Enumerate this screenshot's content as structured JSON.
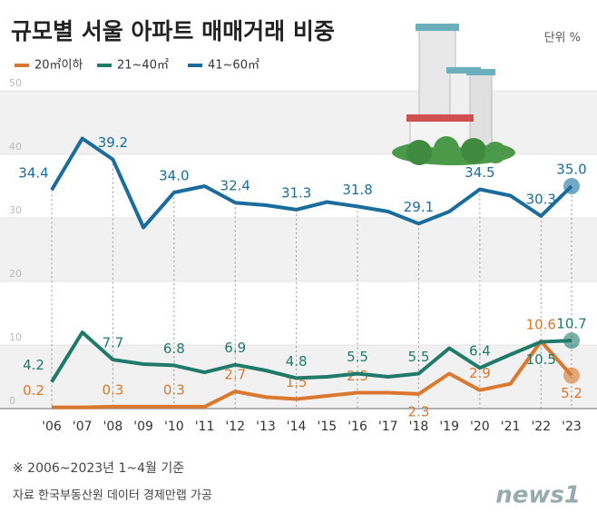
{
  "chart_data": {
    "type": "line",
    "title": "규모별 서울 아파트 매매거래 비중",
    "unit": "단위 %",
    "note": "※ 2006~2023년 1~4월 기준",
    "source": "자료 한국부동산원 데이터 경제만랩 가공",
    "logo": "news1",
    "categories": [
      "'06",
      "'07",
      "'08",
      "'09",
      "'10",
      "'11",
      "'12",
      "'13",
      "'14",
      "'15",
      "'16",
      "'17",
      "'18",
      "'19",
      "'20",
      "'21",
      "'22",
      "'23"
    ],
    "ylim": [
      0,
      50
    ],
    "yticks": [
      0,
      10,
      20,
      30,
      40,
      50
    ],
    "grid": true,
    "series": [
      {
        "name": "20㎡이하",
        "color": "#d9782e",
        "values": [
          0.2,
          0.2,
          0.3,
          0.3,
          0.3,
          0.3,
          2.7,
          1.8,
          1.5,
          2.0,
          2.5,
          2.5,
          2.3,
          5.5,
          2.9,
          3.9,
          10.6,
          5.2
        ],
        "value_labels": [
          "0.2",
          null,
          "0.3",
          null,
          "0.3",
          null,
          "2.7",
          null,
          "1.5",
          null,
          "2.5",
          null,
          "2.3",
          null,
          "2.9",
          null,
          "10.6",
          "5.2"
        ]
      },
      {
        "name": "21~40㎡",
        "color": "#1f7a6a",
        "values": [
          4.2,
          12.0,
          7.7,
          7.0,
          6.8,
          5.7,
          6.9,
          6.0,
          4.8,
          5.0,
          5.5,
          5.0,
          5.5,
          9.5,
          6.4,
          8.5,
          10.5,
          10.7
        ],
        "value_labels": [
          "4.2",
          null,
          "7.7",
          null,
          "6.8",
          null,
          "6.9",
          null,
          "4.8",
          null,
          "5.5",
          null,
          "5.5",
          null,
          "6.4",
          null,
          "10.5",
          "10.7"
        ]
      },
      {
        "name": "41~60㎡",
        "color": "#1a6c9c",
        "values": [
          34.4,
          42.5,
          39.2,
          28.5,
          34.0,
          35.0,
          32.4,
          32.0,
          31.3,
          32.5,
          31.8,
          31.0,
          29.1,
          31.0,
          34.5,
          33.5,
          30.3,
          35.0
        ],
        "value_labels": [
          "34.4",
          null,
          "39.2",
          null,
          "34.0",
          null,
          "32.4",
          null,
          "31.3",
          null,
          "31.8",
          null,
          "29.1",
          null,
          "34.5",
          null,
          "30.3",
          "35.0"
        ]
      }
    ]
  }
}
